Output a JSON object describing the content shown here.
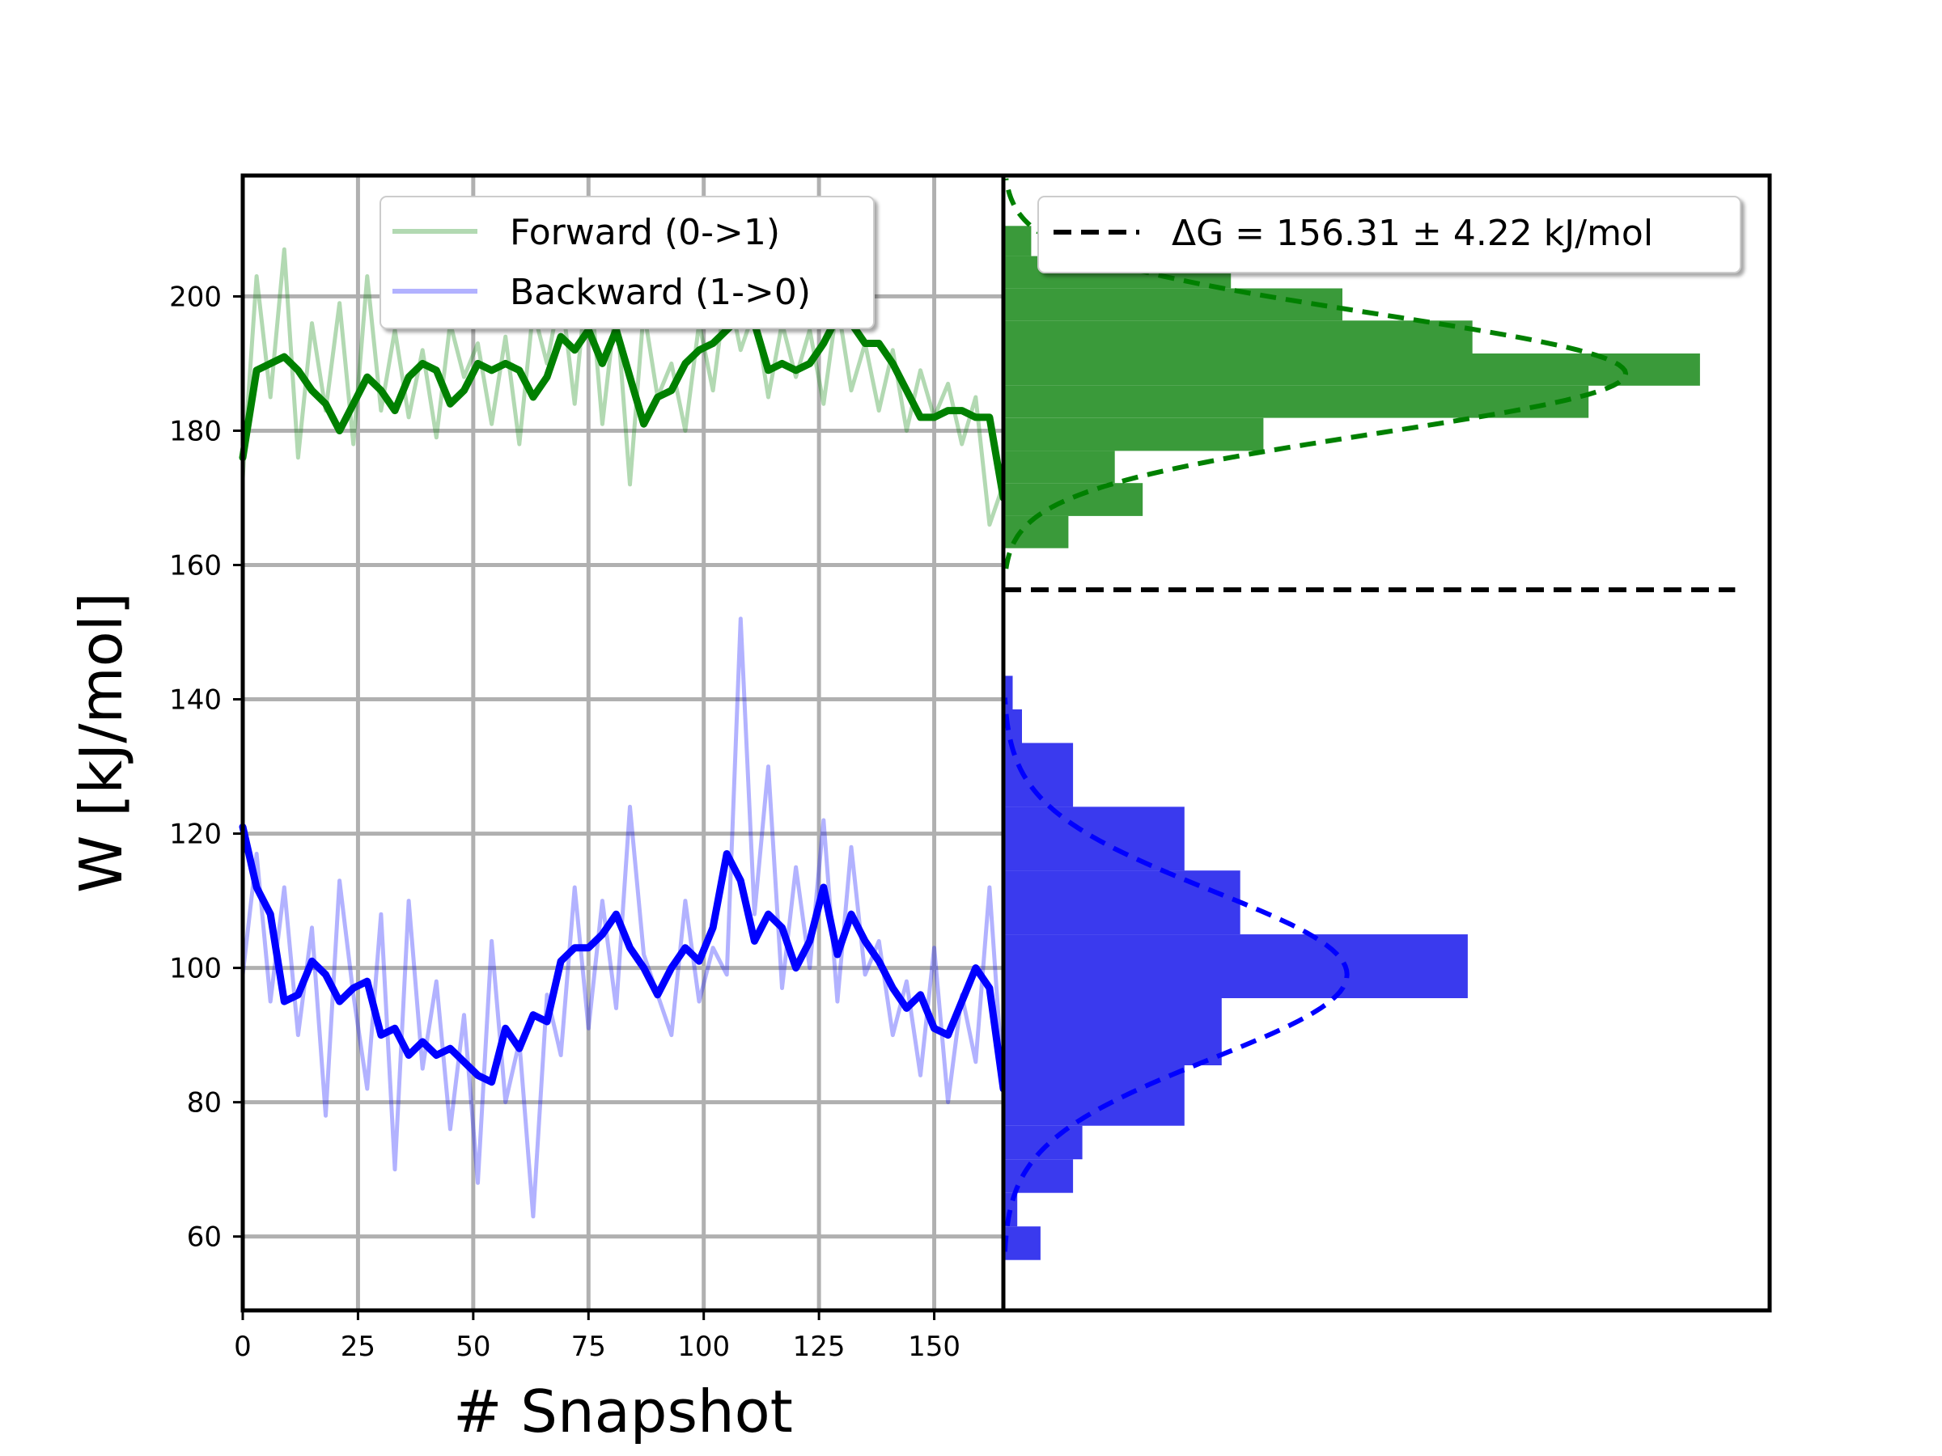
{
  "chart_data": [
    {
      "type": "line",
      "panel": "left",
      "xlabel": "# Snapshot",
      "ylabel": "W [kJ/mol]",
      "xlim": [
        0,
        165
      ],
      "ylim": [
        49,
        218
      ],
      "xticks": [
        0,
        25,
        50,
        75,
        100,
        125,
        150
      ],
      "yticks": [
        60,
        80,
        100,
        120,
        140,
        160,
        180,
        200
      ],
      "grid": true,
      "legend_placement": "top-center",
      "series": [
        {
          "name": "Forward (0->1)",
          "role": "raw",
          "color": "#008000",
          "x": [
            0,
            3,
            6,
            9,
            12,
            15,
            18,
            21,
            24,
            27,
            30,
            33,
            36,
            39,
            42,
            45,
            48,
            51,
            54,
            57,
            60,
            63,
            66,
            69,
            72,
            75,
            78,
            81,
            84,
            87,
            90,
            93,
            96,
            99,
            102,
            105,
            108,
            111,
            114,
            117,
            120,
            123,
            126,
            129,
            132,
            135,
            138,
            141,
            144,
            147,
            150,
            153,
            156,
            159,
            162,
            165
          ],
          "values": [
            173,
            203,
            185,
            207,
            176,
            196,
            183,
            199,
            178,
            203,
            183,
            195,
            182,
            192,
            179,
            196,
            188,
            193,
            181,
            194,
            178,
            198,
            190,
            201,
            184,
            205,
            181,
            199,
            172,
            198,
            185,
            190,
            180,
            196,
            186,
            202,
            192,
            198,
            185,
            196,
            188,
            195,
            184,
            199,
            186,
            193,
            183,
            192,
            180,
            189,
            182,
            187,
            178,
            185,
            166,
            172
          ]
        },
        {
          "name": "",
          "role": "smoothed",
          "color": "#008000",
          "x": [
            0,
            3,
            6,
            9,
            12,
            15,
            18,
            21,
            24,
            27,
            30,
            33,
            36,
            39,
            42,
            45,
            48,
            51,
            54,
            57,
            60,
            63,
            66,
            69,
            72,
            75,
            78,
            81,
            84,
            87,
            90,
            93,
            96,
            99,
            102,
            105,
            108,
            111,
            114,
            117,
            120,
            123,
            126,
            129,
            132,
            135,
            138,
            141,
            144,
            147,
            150,
            153,
            156,
            159,
            162,
            165
          ],
          "values": [
            176,
            189,
            190,
            191,
            189,
            186,
            184,
            180,
            184,
            188,
            186,
            183,
            188,
            190,
            189,
            184,
            186,
            190,
            189,
            190,
            189,
            185,
            188,
            194,
            192,
            195,
            190,
            195,
            188,
            181,
            185,
            186,
            190,
            192,
            193,
            195,
            197,
            196,
            189,
            190,
            189,
            190,
            193,
            197,
            196,
            193,
            193,
            190,
            186,
            182,
            182,
            183,
            183,
            182,
            182,
            170
          ]
        },
        {
          "name": "Backward (1->0)",
          "role": "raw",
          "color": "#0000ff",
          "x": [
            0,
            3,
            6,
            9,
            12,
            15,
            18,
            21,
            24,
            27,
            30,
            33,
            36,
            39,
            42,
            45,
            48,
            51,
            54,
            57,
            60,
            63,
            66,
            69,
            72,
            75,
            78,
            81,
            84,
            87,
            90,
            93,
            96,
            99,
            102,
            105,
            108,
            111,
            114,
            117,
            120,
            123,
            126,
            129,
            132,
            135,
            138,
            141,
            144,
            147,
            150,
            153,
            156,
            159,
            162,
            165
          ],
          "values": [
            99,
            117,
            95,
            112,
            90,
            106,
            78,
            113,
            96,
            82,
            108,
            70,
            110,
            85,
            98,
            76,
            93,
            68,
            104,
            80,
            89,
            63,
            96,
            87,
            112,
            91,
            110,
            94,
            124,
            102,
            96,
            90,
            110,
            95,
            103,
            99,
            152,
            108,
            130,
            97,
            115,
            100,
            122,
            95,
            118,
            99,
            104,
            90,
            98,
            84,
            103,
            80,
            96,
            86,
            112,
            82
          ]
        },
        {
          "name": "",
          "role": "smoothed",
          "color": "#0000ff",
          "x": [
            0,
            3,
            6,
            9,
            12,
            15,
            18,
            21,
            24,
            27,
            30,
            33,
            36,
            39,
            42,
            45,
            48,
            51,
            54,
            57,
            60,
            63,
            66,
            69,
            72,
            75,
            78,
            81,
            84,
            87,
            90,
            93,
            96,
            99,
            102,
            105,
            108,
            111,
            114,
            117,
            120,
            123,
            126,
            129,
            132,
            135,
            138,
            141,
            144,
            147,
            150,
            153,
            156,
            159,
            162,
            165
          ],
          "values": [
            121,
            112,
            108,
            95,
            96,
            101,
            99,
            95,
            97,
            98,
            90,
            91,
            87,
            89,
            87,
            88,
            86,
            84,
            83,
            91,
            88,
            93,
            92,
            101,
            103,
            103,
            105,
            108,
            103,
            100,
            96,
            100,
            103,
            101,
            106,
            117,
            113,
            104,
            108,
            106,
            100,
            104,
            112,
            102,
            108,
            104,
            101,
            97,
            94,
            96,
            91,
            90,
            95,
            100,
            97,
            82
          ]
        }
      ]
    },
    {
      "type": "bar",
      "panel": "right",
      "orientation": "horizontal",
      "xlim": [
        0,
        1.65
      ],
      "ylim": [
        49,
        218
      ],
      "legend_placement": "top-right",
      "delta_g": {
        "label": "ΔG = 156.31 ± 4.22 kJ/mol",
        "value": 156.31,
        "error": 4.22,
        "color": "#000000",
        "style": "dashed"
      },
      "series": [
        {
          "name": "",
          "color": "#008000",
          "fill": "#3a9a3a",
          "bins": [
            {
              "y0": 162.5,
              "y1": 167.3,
              "density": 0.14
            },
            {
              "y0": 167.3,
              "y1": 172.2,
              "density": 0.3
            },
            {
              "y0": 172.2,
              "y1": 177.0,
              "density": 0.24
            },
            {
              "y0": 177.0,
              "y1": 181.9,
              "density": 0.56
            },
            {
              "y0": 181.9,
              "y1": 186.7,
              "density": 1.26
            },
            {
              "y0": 186.7,
              "y1": 191.5,
              "density": 1.5
            },
            {
              "y0": 191.5,
              "y1": 196.4,
              "density": 1.01
            },
            {
              "y0": 196.4,
              "y1": 201.2,
              "density": 0.73
            },
            {
              "y0": 201.2,
              "y1": 206.0,
              "density": 0.49
            },
            {
              "y0": 206.0,
              "y1": 210.5,
              "density": 0.06
            }
          ],
          "fit": {
            "mean": 188.5,
            "sigma": 8.8,
            "peak": 1.34
          }
        },
        {
          "name": "",
          "color": "#0000ff",
          "fill": "#3a3aee",
          "bins": [
            {
              "y0": 56.5,
              "y1": 61.5,
              "density": 0.08
            },
            {
              "y0": 61.5,
              "y1": 66.5,
              "density": 0.03
            },
            {
              "y0": 66.5,
              "y1": 71.5,
              "density": 0.15
            },
            {
              "y0": 71.5,
              "y1": 76.5,
              "density": 0.17
            },
            {
              "y0": 76.5,
              "y1": 85.5,
              "density": 0.39
            },
            {
              "y0": 85.5,
              "y1": 95.5,
              "density": 0.47
            },
            {
              "y0": 95.5,
              "y1": 105.0,
              "density": 1.0
            },
            {
              "y0": 105.0,
              "y1": 114.5,
              "density": 0.51
            },
            {
              "y0": 114.5,
              "y1": 124.0,
              "density": 0.39
            },
            {
              "y0": 124.0,
              "y1": 128.5,
              "density": 0.15
            },
            {
              "y0": 128.5,
              "y1": 133.5,
              "density": 0.15
            },
            {
              "y0": 133.5,
              "y1": 138.5,
              "density": 0.04
            },
            {
              "y0": 138.5,
              "y1": 143.5,
              "density": 0.02
            }
          ],
          "fit": {
            "mean": 99.0,
            "sigma": 12.5,
            "peak": 0.74
          }
        }
      ]
    }
  ]
}
